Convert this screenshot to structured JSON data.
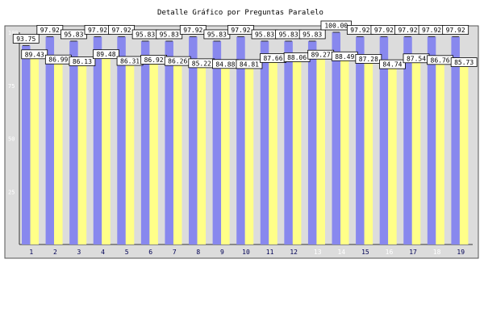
{
  "chart_data": {
    "type": "bar",
    "title": "Detalle Gráfico por Preguntas Paralelo",
    "xlabel": "",
    "ylabel": "",
    "ylim": [
      0,
      100
    ],
    "yticks": [
      25,
      50,
      75,
      100
    ],
    "grid": false,
    "legend": "none",
    "categories": [
      "1",
      "2",
      "3",
      "4",
      "5",
      "6",
      "7",
      "8",
      "9",
      "10",
      "11",
      "12",
      "13",
      "14",
      "15",
      "16",
      "17",
      "18",
      "19"
    ],
    "series": [
      {
        "color": "#8888ee",
        "values": [
          93.75,
          97.92,
          95.83,
          97.92,
          97.92,
          95.83,
          95.83,
          97.92,
          95.83,
          97.92,
          95.83,
          95.83,
          95.83,
          100.0,
          97.92,
          97.92,
          97.92,
          97.92,
          97.92
        ]
      },
      {
        "color": "#ffff88",
        "values": [
          89.43,
          86.99,
          86.13,
          89.48,
          86.31,
          86.92,
          86.26,
          85.22,
          84.88,
          84.81,
          87.66,
          88.06,
          89.27,
          88.49,
          87.28,
          84.74,
          87.54,
          86.76,
          85.73
        ]
      }
    ],
    "value_labels": [
      [
        "93.75",
        "97.92",
        "95.83",
        "97.92",
        "97.92",
        "95.83",
        "95.83",
        "97.92",
        "95.83",
        "97.92",
        "95.83",
        "95.83",
        "95.83",
        "100.00",
        "97.92",
        "97.92",
        "97.92",
        "97.92",
        "97.92"
      ],
      [
        "89.43",
        "86.99",
        "86.13",
        "89.48",
        "86.31",
        "86.92",
        "86.26",
        "85.22",
        "84.88",
        "84.81",
        "87.66",
        "88.06",
        "89.27",
        "88.49",
        "87.28",
        "84.74",
        "87.54",
        "86.76",
        "85.73"
      ]
    ],
    "colors": {
      "plot_background": "#dcdcdc",
      "frame": "#555555",
      "label_box": "#ffffff",
      "muted_tick": "#ffffff",
      "tick": "#000055"
    }
  }
}
